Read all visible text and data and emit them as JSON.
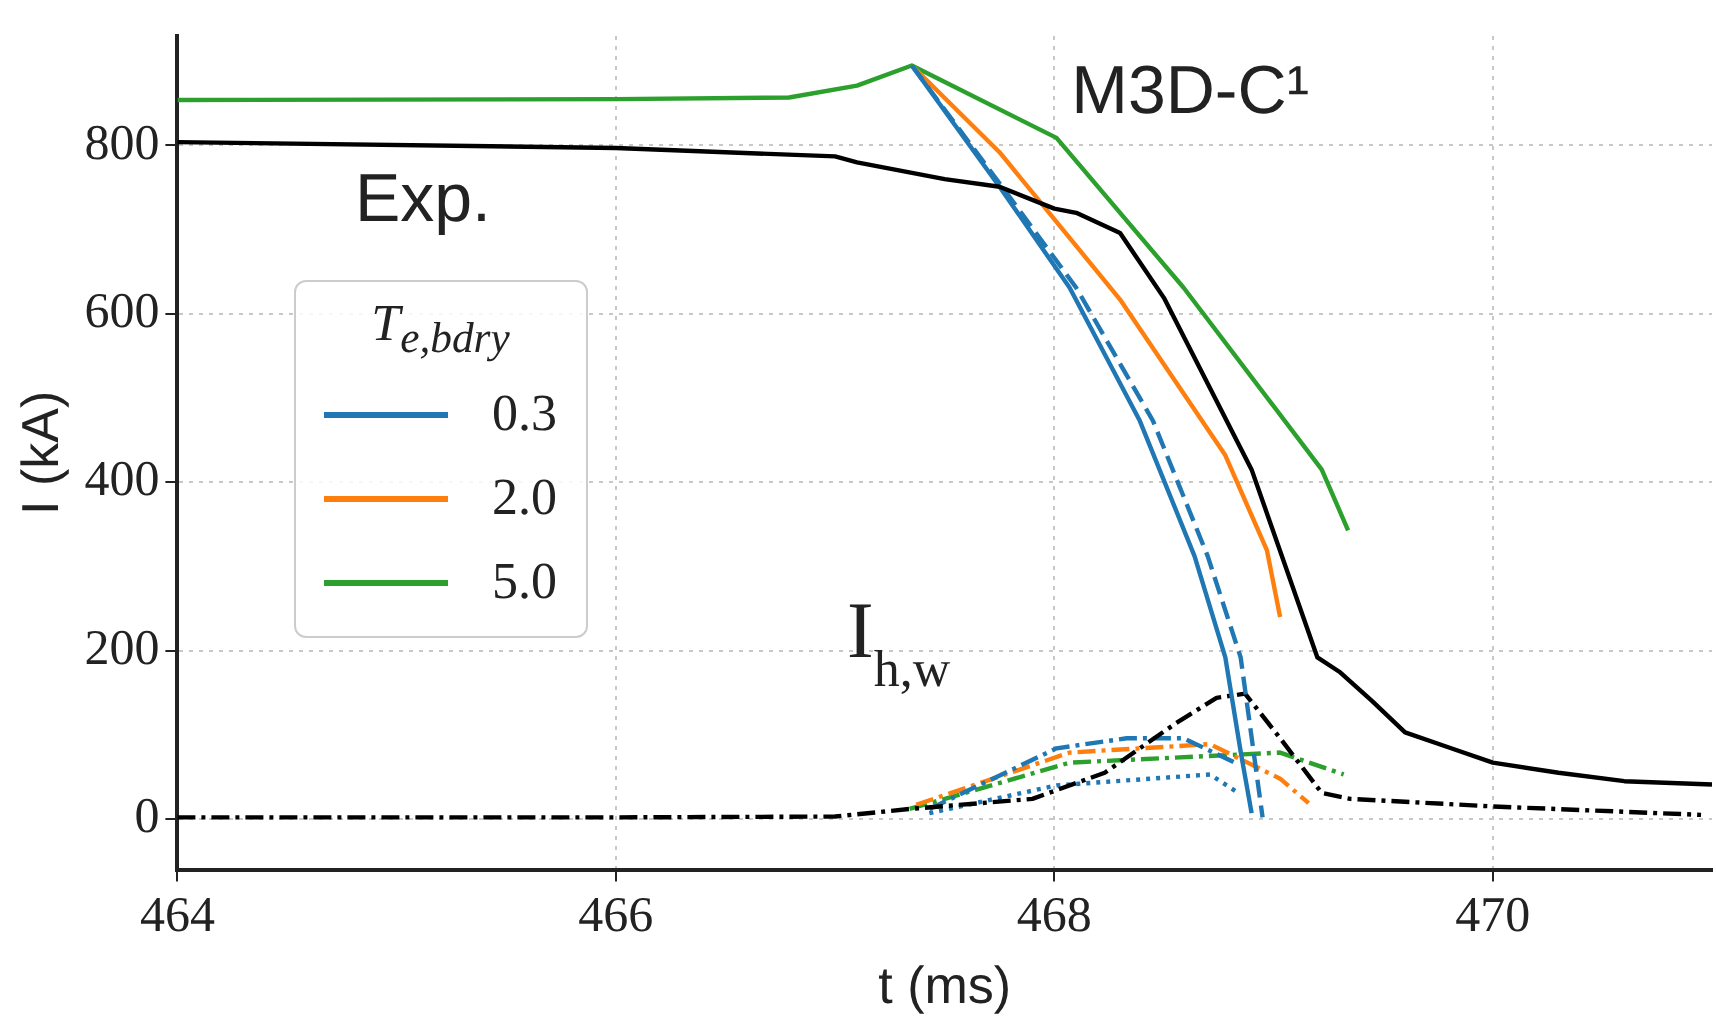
{
  "chart_data": {
    "type": "line",
    "xlabel": "t (ms)",
    "ylabel": "I (kA)",
    "legend_title": "T$_{e,bdry}$",
    "legend": "center left",
    "grid": true,
    "marker": "none",
    "xlim": [
      464,
      471
    ],
    "ylim": [
      -60,
      930
    ],
    "xticks": [
      464,
      466,
      468,
      470
    ],
    "yticks": [
      0,
      200,
      400,
      600,
      800
    ],
    "annotations": [
      "Exp.",
      "M3D-C¹",
      "I$_{h,w}$"
    ],
    "series": [
      {
        "color": "#000000",
        "line_style": "solid",
        "x": [
          464,
          466,
          467,
          467.1,
          467.5,
          467.75,
          468,
          468.1,
          468.3,
          468.5,
          468.9,
          469.2,
          469.3,
          469.45,
          469.6,
          469.8,
          470,
          470.3,
          470.6,
          471
        ],
        "values": [
          804,
          797,
          787,
          780,
          760,
          751,
          725,
          720,
          696,
          619,
          415,
          192,
          175,
          140,
          103,
          85,
          67,
          55,
          45,
          41
        ]
      },
      {
        "name": "0.3",
        "color": "#1f77b4",
        "line_style": "solid",
        "x": [
          467.35,
          467.75,
          468.07,
          468.39,
          468.64,
          468.78,
          468.85,
          468.9
        ],
        "values": [
          895,
          751,
          631,
          473,
          312,
          192,
          80,
          7
        ]
      },
      {
        "color": "#1f77b4",
        "line_style": "dashed",
        "x": [
          467.35,
          467.75,
          468.1,
          468.45,
          468.7,
          468.85,
          468.95
        ],
        "values": [
          895,
          755,
          631,
          473,
          312,
          192,
          2
        ]
      },
      {
        "name": "2.0",
        "color": "#ff7f0e",
        "line_style": "solid",
        "x": [
          467.35,
          467.75,
          468.3,
          468.78,
          468.97,
          469.03
        ],
        "values": [
          895,
          792,
          617,
          432,
          319,
          240
        ]
      },
      {
        "name": "5.0",
        "color": "#2ca02c",
        "line_style": "solid",
        "x": [
          464,
          466,
          466.79,
          467.1,
          467.35,
          468.01,
          468.59,
          469.22,
          469.34
        ],
        "values": [
          854,
          855,
          857,
          871,
          895,
          809,
          631,
          415,
          343
        ]
      },
      {
        "color": "#000000",
        "line_style": "dashdot",
        "x": [
          464,
          466,
          467,
          467.34,
          467.9,
          468.23,
          468.55,
          468.74,
          468.87,
          469.03,
          469.22,
          469.35,
          470,
          470.95
        ],
        "values": [
          2,
          2,
          3,
          12,
          24,
          55,
          113,
          144,
          149,
          96,
          31,
          24,
          15,
          5
        ]
      },
      {
        "color": "#1f77b4",
        "line_style": "dashdot",
        "x": [
          467.43,
          468.01,
          468.33,
          468.59,
          468.84
        ],
        "values": [
          12,
          84,
          96,
          96,
          65
        ]
      },
      {
        "color": "#1f77b4",
        "line_style": "dotted",
        "x": [
          467.43,
          468.01,
          468.71,
          468.84
        ],
        "values": [
          7,
          40,
          53,
          31
        ]
      },
      {
        "color": "#ff7f0e",
        "line_style": "dashdot",
        "x": [
          467.37,
          468.07,
          468.71,
          469.03,
          469.16
        ],
        "values": [
          17,
          79,
          89,
          48,
          19
        ]
      },
      {
        "color": "#2ca02c",
        "line_style": "dashdot",
        "x": [
          467.34,
          468.07,
          469.03,
          469.32
        ],
        "values": [
          12,
          67,
          79,
          53
        ]
      }
    ]
  }
}
